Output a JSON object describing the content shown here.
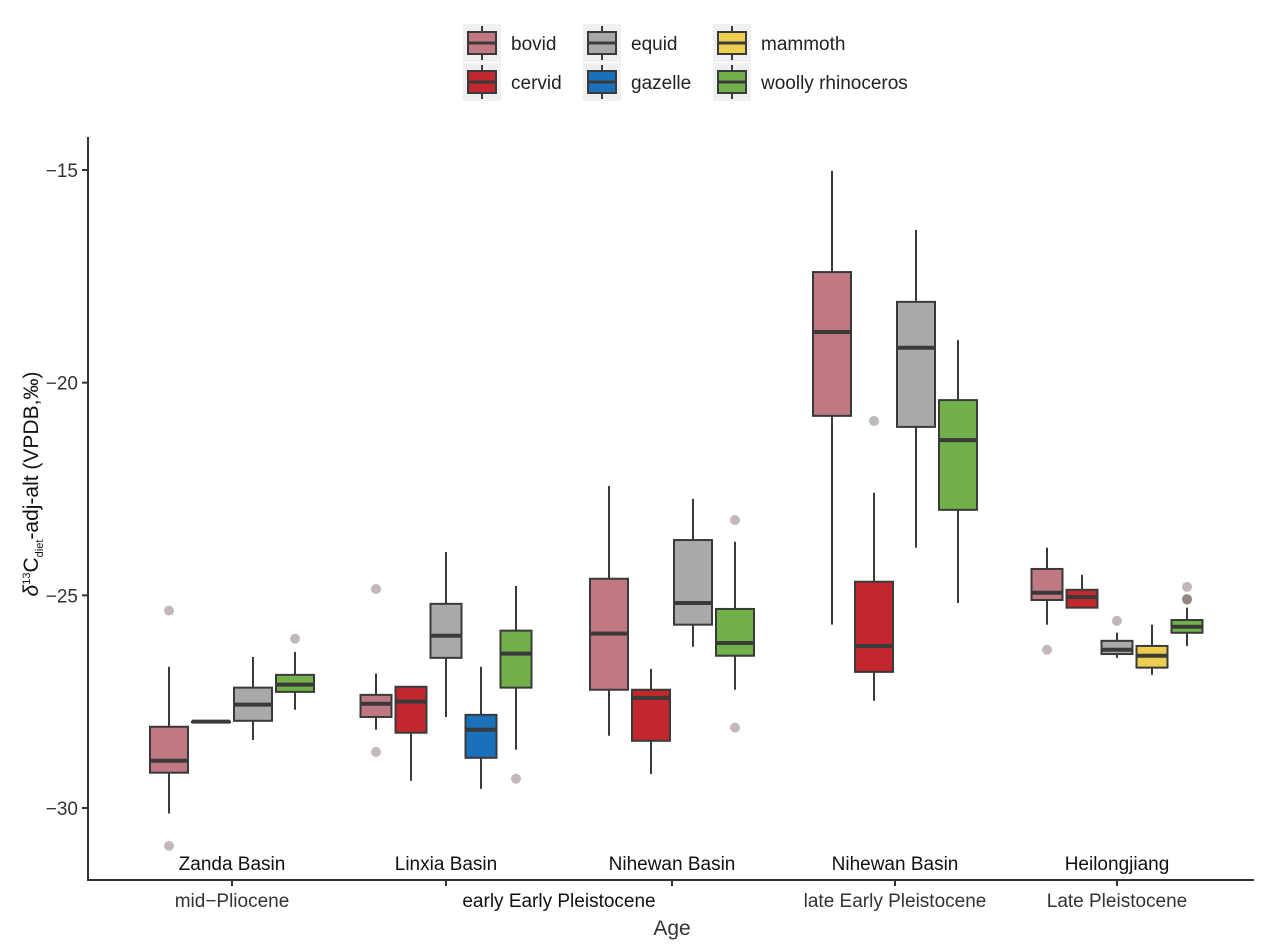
{
  "chart_data": {
    "type": "boxplot",
    "title": "",
    "xlabel": "Age",
    "ylabel": {
      "prefix": "δ",
      "sup": "13",
      "main": "C",
      "sub": "diet",
      "suffix": "-adj-alt (VPDB,‰)"
    },
    "ylim": [
      -31.6,
      -14.2
    ],
    "yticks": [
      -15,
      -20,
      -25,
      -30
    ],
    "ytick_labels": [
      "−15",
      "−20",
      "−25",
      "−30"
    ],
    "grid": false,
    "legend_position": "top",
    "legend": [
      {
        "name": "bovid",
        "color": "#C07882"
      },
      {
        "name": "cervid",
        "color": "#C1272D"
      },
      {
        "name": "equid",
        "color": "#A8A9A8"
      },
      {
        "name": "gazelle",
        "color": "#1B70BC"
      },
      {
        "name": "mammoth",
        "color": "#ECCF4E"
      },
      {
        "name": "woolly rhinoceros",
        "color": "#72B04A"
      }
    ],
    "outlier_color": "#BDB5B3",
    "x_ticks": [
      {
        "age": "mid−Pliocene"
      },
      {
        "age": ""
      },
      {
        "age": ""
      },
      {
        "age": "late Early Pleistocene"
      },
      {
        "age": "Late Pleistocene"
      }
    ],
    "x_group_label": {
      "text": "early Early Pleistocene",
      "spans": [
        1,
        2
      ]
    },
    "groups": [
      {
        "site": "Zanda Basin",
        "age": "mid−Pliocene",
        "boxes": [
          {
            "taxon": "bovid",
            "whisker_high": -26.68,
            "q3": -28.09,
            "median": -28.89,
            "q1": -29.17,
            "whisker_low": -30.13,
            "outliers": [
              -25.36,
              -30.89
            ]
          },
          {
            "taxon": "cervid",
            "whisker_high": -27.97,
            "q3": -27.97,
            "median": -27.97,
            "q1": -27.97,
            "whisker_low": -27.97,
            "outliers": []
          },
          {
            "taxon": "equid",
            "whisker_high": -26.45,
            "q3": -27.17,
            "median": -27.57,
            "q1": -27.95,
            "whisker_low": -28.4,
            "outliers": []
          },
          {
            "taxon": "woolly rhinoceros",
            "whisker_high": -26.33,
            "q3": -26.87,
            "median": -27.1,
            "q1": -27.27,
            "whisker_low": -27.69,
            "outliers": [
              -26.02
            ]
          }
        ]
      },
      {
        "site": "Linxia Basin",
        "age": "early Early Pleistocene",
        "boxes": [
          {
            "taxon": "bovid",
            "whisker_high": -26.84,
            "q3": -27.34,
            "median": -27.55,
            "q1": -27.86,
            "whisker_low": -28.16,
            "outliers": [
              -24.85,
              -28.68
            ]
          },
          {
            "taxon": "cervid",
            "whisker_high": -27.13,
            "q3": -27.15,
            "median": -27.5,
            "q1": -28.23,
            "whisker_low": -29.36,
            "outliers": []
          },
          {
            "taxon": "equid",
            "whisker_high": -23.98,
            "q3": -25.2,
            "median": -25.95,
            "q1": -26.47,
            "whisker_low": -27.86,
            "outliers": []
          },
          {
            "taxon": "gazelle",
            "whisker_high": -26.68,
            "q3": -27.81,
            "median": -28.16,
            "q1": -28.82,
            "whisker_low": -29.55,
            "outliers": []
          },
          {
            "taxon": "woolly rhinoceros",
            "whisker_high": -24.78,
            "q3": -25.83,
            "median": -26.37,
            "q1": -27.17,
            "whisker_low": -28.63,
            "outliers": [
              -29.31
            ]
          }
        ]
      },
      {
        "site": "Nihewan Basin",
        "age": "early Early Pleistocene",
        "boxes": [
          {
            "taxon": "bovid",
            "whisker_high": -22.43,
            "q3": -24.61,
            "median": -25.9,
            "q1": -27.22,
            "whisker_low": -28.3,
            "outliers": []
          },
          {
            "taxon": "cervid",
            "whisker_high": -26.73,
            "q3": -27.22,
            "median": -27.41,
            "q1": -28.42,
            "whisker_low": -29.2,
            "outliers": []
          },
          {
            "taxon": "equid",
            "whisker_high": -22.73,
            "q3": -23.7,
            "median": -25.18,
            "q1": -25.69,
            "whisker_low": -26.21,
            "outliers": []
          },
          {
            "taxon": "woolly rhinoceros",
            "whisker_high": -23.74,
            "q3": -25.32,
            "median": -26.12,
            "q1": -26.42,
            "whisker_low": -27.22,
            "outliers": [
              -23.23,
              -28.11
            ]
          }
        ]
      },
      {
        "site": "Nihewan Basin",
        "age": "late Early Pleistocene",
        "boxes": [
          {
            "taxon": "bovid",
            "whisker_high": -15.02,
            "q3": -17.4,
            "median": -18.81,
            "q1": -20.78,
            "whisker_low": -25.69,
            "outliers": []
          },
          {
            "taxon": "cervid",
            "whisker_high": -22.59,
            "q3": -24.68,
            "median": -26.19,
            "q1": -26.8,
            "whisker_low": -27.48,
            "outliers": [
              -20.9
            ]
          },
          {
            "taxon": "equid",
            "whisker_high": -16.41,
            "q3": -18.1,
            "median": -19.18,
            "q1": -21.04,
            "whisker_low": -23.88,
            "outliers": []
          },
          {
            "taxon": "woolly rhinoceros",
            "whisker_high": -19.0,
            "q3": -20.41,
            "median": -21.35,
            "q1": -22.99,
            "whisker_low": -25.18,
            "outliers": []
          }
        ]
      },
      {
        "site": "Heilongjiang",
        "age": "Late Pleistocene",
        "boxes": [
          {
            "taxon": "bovid",
            "whisker_high": -23.88,
            "q3": -24.38,
            "median": -24.94,
            "q1": -25.11,
            "whisker_low": -25.69,
            "outliers": [
              -26.28
            ]
          },
          {
            "taxon": "cervid",
            "whisker_high": -24.52,
            "q3": -24.87,
            "median": -25.04,
            "q1": -25.29,
            "whisker_low": -25.29,
            "outliers": []
          },
          {
            "taxon": "equid",
            "whisker_high": -25.88,
            "q3": -26.07,
            "median": -26.28,
            "q1": -26.38,
            "whisker_low": -26.47,
            "outliers": [
              -25.6
            ]
          },
          {
            "taxon": "mammoth",
            "whisker_high": -25.69,
            "q3": -26.19,
            "median": -26.42,
            "q1": -26.7,
            "whisker_low": -26.87,
            "outliers": []
          },
          {
            "taxon": "woolly rhinoceros",
            "whisker_high": -25.29,
            "q3": -25.58,
            "median": -25.74,
            "q1": -25.88,
            "whisker_low": -26.19,
            "outliers": [
              -24.8,
              -25.08,
              -25.1
            ]
          }
        ]
      }
    ]
  }
}
